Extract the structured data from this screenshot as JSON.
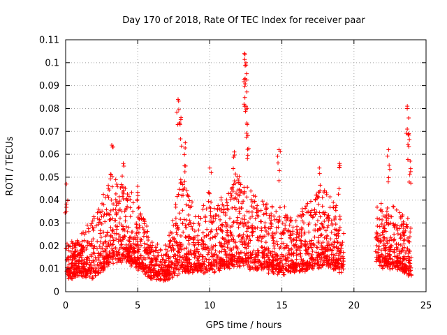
{
  "chart_data": {
    "type": "scatter",
    "title": "Day 170 of 2018, Rate Of TEC Index for receiver paar",
    "xlabel": "GPS time / hours",
    "ylabel": "ROTI / TECUs",
    "xlim": [
      0,
      25
    ],
    "ylim": [
      0,
      0.11
    ],
    "xticks": [
      0,
      5,
      10,
      15,
      20,
      25
    ],
    "xtick_labels": [
      "0",
      "5",
      "10",
      "15",
      "20",
      "25"
    ],
    "yticks": [
      0,
      0.01,
      0.02,
      0.03,
      0.04,
      0.05,
      0.06,
      0.07,
      0.08,
      0.09,
      0.1,
      0.11
    ],
    "ytick_labels": [
      "0",
      "0.01",
      "0.02",
      "0.03",
      "0.04",
      "0.05",
      "0.06",
      "0.07",
      "0.08",
      "0.09",
      "0.1",
      "0.11"
    ],
    "grid": true,
    "marker": "+",
    "series_color": "#ff0000",
    "series": [
      {
        "name": "ROTI",
        "data_gaps_hours": [
          [
            19.3,
            21.5
          ]
        ],
        "peaks": [
          {
            "x": 0.05,
            "y": 0.047
          },
          {
            "x": 3.2,
            "y": 0.064
          },
          {
            "x": 4.0,
            "y": 0.056
          },
          {
            "x": 5.0,
            "y": 0.046
          },
          {
            "x": 7.8,
            "y": 0.084
          },
          {
            "x": 8.0,
            "y": 0.076
          },
          {
            "x": 8.3,
            "y": 0.065
          },
          {
            "x": 10.0,
            "y": 0.054
          },
          {
            "x": 11.7,
            "y": 0.061
          },
          {
            "x": 12.4,
            "y": 0.104
          },
          {
            "x": 12.5,
            "y": 0.1
          },
          {
            "x": 12.45,
            "y": 0.093
          },
          {
            "x": 12.5,
            "y": 0.081
          },
          {
            "x": 12.6,
            "y": 0.073
          },
          {
            "x": 14.8,
            "y": 0.062
          },
          {
            "x": 17.6,
            "y": 0.054
          },
          {
            "x": 19.0,
            "y": 0.056
          },
          {
            "x": 22.4,
            "y": 0.062
          },
          {
            "x": 23.7,
            "y": 0.081
          },
          {
            "x": 23.8,
            "y": 0.069
          },
          {
            "x": 23.9,
            "y": 0.057
          }
        ],
        "envelope": [
          {
            "x": 0,
            "base": 0.012,
            "high": 0.02
          },
          {
            "x": 1,
            "base": 0.013,
            "high": 0.022
          },
          {
            "x": 2,
            "base": 0.012,
            "high": 0.032
          },
          {
            "x": 3,
            "base": 0.018,
            "high": 0.05
          },
          {
            "x": 4,
            "base": 0.02,
            "high": 0.045
          },
          {
            "x": 5,
            "base": 0.016,
            "high": 0.04
          },
          {
            "x": 6,
            "base": 0.012,
            "high": 0.02
          },
          {
            "x": 7,
            "base": 0.011,
            "high": 0.018
          },
          {
            "x": 8,
            "base": 0.015,
            "high": 0.05
          },
          {
            "x": 9,
            "base": 0.015,
            "high": 0.035
          },
          {
            "x": 10,
            "base": 0.015,
            "high": 0.038
          },
          {
            "x": 11,
            "base": 0.016,
            "high": 0.04
          },
          {
            "x": 12,
            "base": 0.018,
            "high": 0.05
          },
          {
            "x": 13,
            "base": 0.016,
            "high": 0.042
          },
          {
            "x": 14,
            "base": 0.015,
            "high": 0.038
          },
          {
            "x": 15,
            "base": 0.014,
            "high": 0.035
          },
          {
            "x": 16,
            "base": 0.015,
            "high": 0.034
          },
          {
            "x": 17,
            "base": 0.016,
            "high": 0.04
          },
          {
            "x": 18,
            "base": 0.018,
            "high": 0.045
          },
          {
            "x": 19,
            "base": 0.015,
            "high": 0.035
          },
          {
            "x": 21.5,
            "base": 0.018,
            "high": 0.04
          },
          {
            "x": 22,
            "base": 0.017,
            "high": 0.035
          },
          {
            "x": 23,
            "base": 0.016,
            "high": 0.035
          },
          {
            "x": 24,
            "base": 0.013,
            "high": 0.03
          }
        ]
      }
    ]
  }
}
